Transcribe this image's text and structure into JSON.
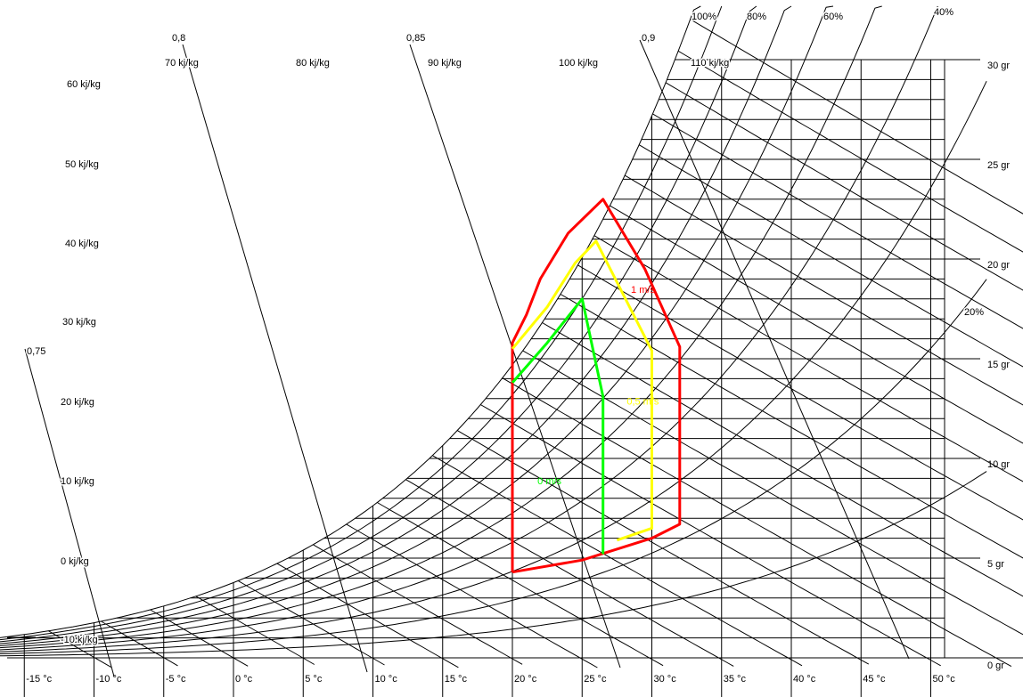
{
  "chart_data": {
    "type": "line",
    "title": "",
    "xlabel": "",
    "ylabel": "",
    "x_axis": {
      "unit": "°C",
      "range": [
        -16,
        52
      ],
      "ticks": [
        {
          "value": -15,
          "label": "-15 °c"
        },
        {
          "value": -10,
          "label": "-10 °c"
        },
        {
          "value": -5,
          "label": "-5 °c"
        },
        {
          "value": 0,
          "label": "0 °c"
        },
        {
          "value": 5,
          "label": "5 °c"
        },
        {
          "value": 10,
          "label": "10 °c"
        },
        {
          "value": 15,
          "label": "15 °c"
        },
        {
          "value": 20,
          "label": "20 °c"
        },
        {
          "value": 25,
          "label": "25 °c"
        },
        {
          "value": 30,
          "label": "30 °c"
        },
        {
          "value": 35,
          "label": "35 °c"
        },
        {
          "value": 40,
          "label": "40 °c"
        },
        {
          "value": 45,
          "label": "45 °c"
        },
        {
          "value": 50,
          "label": "50 °c"
        }
      ]
    },
    "y_axis": {
      "unit": "g/kg",
      "position": "right",
      "range": [
        0,
        31
      ],
      "ticks": [
        {
          "value": 0,
          "label": "0 gr"
        },
        {
          "value": 5,
          "label": "5 gr"
        },
        {
          "value": 10,
          "label": "10 gr"
        },
        {
          "value": 15,
          "label": "15 gr"
        },
        {
          "value": 20,
          "label": "20 gr"
        },
        {
          "value": 25,
          "label": "25 gr"
        },
        {
          "value": 30,
          "label": "30 gr"
        }
      ]
    },
    "relative_humidity_curves": [
      {
        "value": 100,
        "label": "100%"
      },
      {
        "value": 80,
        "label": "80%"
      },
      {
        "value": 60,
        "label": "60%"
      },
      {
        "value": 40,
        "label": "40%"
      },
      {
        "value": 20,
        "label": "20%"
      }
    ],
    "enthalpy_lines": [
      {
        "value": -10,
        "label": "-10 kj/kg"
      },
      {
        "value": 0,
        "label": "0 kj/kg"
      },
      {
        "value": 10,
        "label": "10 kj/kg"
      },
      {
        "value": 20,
        "label": "20 kj/kg"
      },
      {
        "value": 30,
        "label": "30 kj/kg"
      },
      {
        "value": 40,
        "label": "40 kj/kg"
      },
      {
        "value": 50,
        "label": "50 kj/kg"
      },
      {
        "value": 60,
        "label": "60 kj/kg"
      },
      {
        "value": 70,
        "label": "70 kj/kg"
      },
      {
        "value": 80,
        "label": "80 kj/kg"
      },
      {
        "value": 90,
        "label": "90 kj/kg"
      },
      {
        "value": 100,
        "label": "100 kj/kg"
      },
      {
        "value": 110,
        "label": "110 kj/kg"
      }
    ],
    "specific_volume_lines": [
      {
        "value": 0.75,
        "label": "0,75"
      },
      {
        "value": 0.8,
        "label": "0,8"
      },
      {
        "value": 0.85,
        "label": "0,85"
      },
      {
        "value": 0.9,
        "label": "0,9"
      }
    ],
    "series": [
      {
        "name": "1 m/s",
        "color": "#ff0000",
        "points": [
          [
            20,
            4.3
          ],
          [
            20,
            15.8
          ],
          [
            21,
            17.2
          ],
          [
            22,
            19.0
          ],
          [
            24,
            21.3
          ],
          [
            26.5,
            23.0
          ],
          [
            29.5,
            19.5
          ],
          [
            32,
            15.6
          ],
          [
            32,
            6.7
          ],
          [
            30,
            6.0
          ],
          [
            25,
            4.9
          ],
          [
            20,
            4.3
          ]
        ]
      },
      {
        "name": "0,5 m/s",
        "color": "#ffff00",
        "points": [
          [
            20,
            15.5
          ],
          [
            22.5,
            17.6
          ],
          [
            24.5,
            19.8
          ],
          [
            26,
            20.9
          ],
          [
            30,
            15.4
          ],
          [
            30,
            6.5
          ],
          [
            27.5,
            5.9
          ]
        ]
      },
      {
        "name": "0 m/s",
        "color": "#00ff00",
        "points": [
          [
            20,
            13.8
          ],
          [
            22.5,
            15.8
          ],
          [
            25,
            18.0
          ],
          [
            26.5,
            13.1
          ],
          [
            26.5,
            5.2
          ]
        ]
      }
    ],
    "series_labels": [
      {
        "text": "1 m/s",
        "color": "#ff0000",
        "x": 28.5,
        "y": 18.3
      },
      {
        "text": "0,5 m/s",
        "color": "#ffff00",
        "x": 28.2,
        "y": 12.7
      },
      {
        "text": "0 m/s",
        "color": "#00ff00",
        "x": 21.8,
        "y": 8.7
      }
    ],
    "grid": true,
    "legend": "none"
  }
}
